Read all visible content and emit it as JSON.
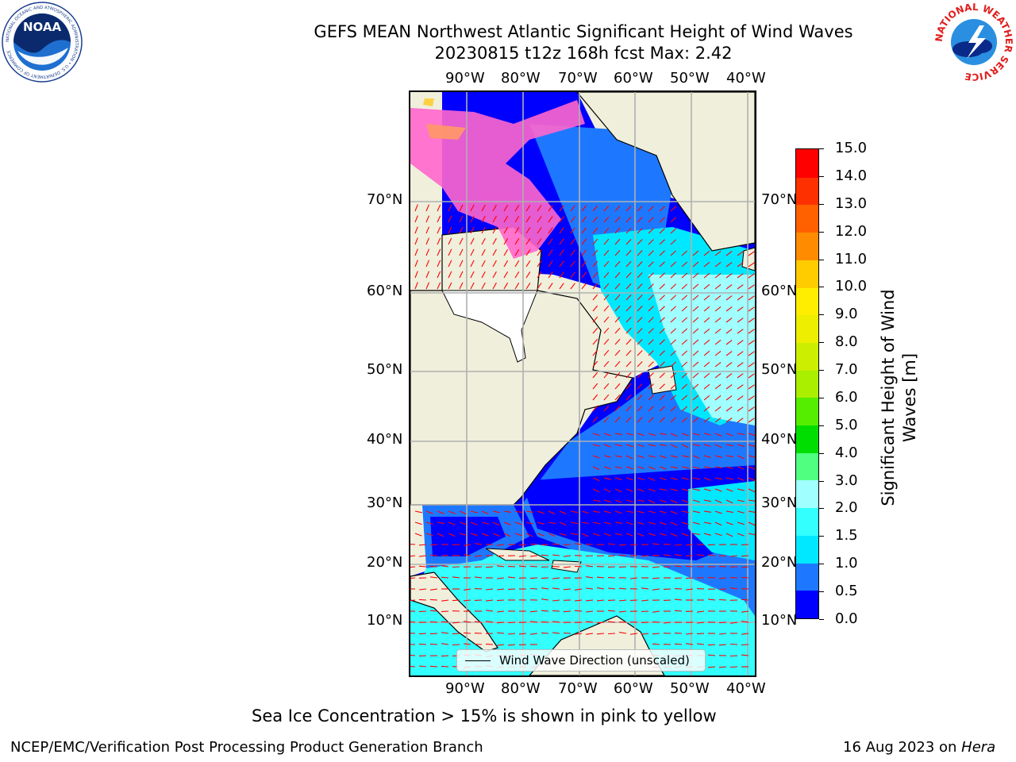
{
  "title": {
    "line1": "GEFS MEAN Northwest Atlantic Significant Height of Wind Waves",
    "line2": "20230815 t12z 168h fcst   Max: 2.42"
  },
  "map": {
    "lon_labels": [
      "90°W",
      "80°W",
      "70°W",
      "60°W",
      "50°W",
      "40°W"
    ],
    "lat_labels": [
      "70°N",
      "60°N",
      "50°N",
      "40°N",
      "30°N",
      "20°N",
      "10°N"
    ],
    "legend_label": "Wind Wave Direction (unscaled)",
    "vector_color": "#ff0000",
    "land_color": "#efefdc"
  },
  "colorbar": {
    "label": "Significant Height of Wind Waves [m]",
    "ticks": [
      "0.0",
      "0.5",
      "1.0",
      "1.5",
      "2.0",
      "3.0",
      "4.0",
      "5.0",
      "6.0",
      "7.0",
      "8.0",
      "9.0",
      "10.0",
      "11.0",
      "12.0",
      "13.0",
      "14.0",
      "15.0"
    ],
    "colors": [
      "#0000ff",
      "#1e78ff",
      "#00e8ff",
      "#33ffff",
      "#a0ffff",
      "#50ff80",
      "#00dd00",
      "#55ee00",
      "#aaee00",
      "#ccee00",
      "#eeee00",
      "#ffee00",
      "#ffcc00",
      "#ff8c00",
      "#ff6000",
      "#ff3000",
      "#ff0000"
    ]
  },
  "sea_ice_note": "Sea Ice Concentration > 15% is shown in pink to yellow",
  "footer": {
    "left": "NCEP/EMC/Verification Post Processing Product Generation Branch",
    "right_date": "16 Aug 2023 on ",
    "right_machine": "Hera"
  },
  "logos": {
    "left_text": "NOAA",
    "left_ring": "NATIONAL OCEANIC AND ATMOSPHERIC ADMINISTRATION • U.S. DEPARTMENT OF COMMERCE",
    "right_ring": "NATIONAL WEATHER SERVICE"
  }
}
